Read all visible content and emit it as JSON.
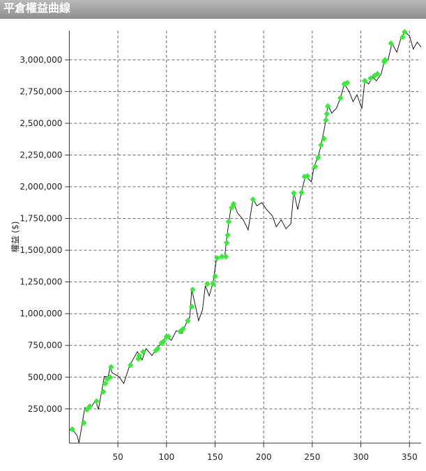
{
  "chart_data": {
    "type": "line",
    "title": "平倉權益曲線",
    "y_label": "權益 ($)",
    "x": [
      0,
      3,
      8,
      10,
      13,
      16,
      19,
      22,
      27,
      30,
      36,
      40,
      42,
      44,
      51,
      56,
      62,
      70,
      75,
      79,
      85,
      90,
      96,
      100,
      105,
      110,
      116,
      120,
      124,
      126,
      130,
      133,
      137,
      140,
      144,
      148,
      151,
      154,
      160,
      162,
      164,
      166,
      169,
      173,
      179,
      184,
      189,
      193,
      198,
      203,
      209,
      213,
      218,
      223,
      228,
      231,
      235,
      239,
      243,
      249,
      252,
      256,
      259,
      263,
      266,
      270,
      275,
      279,
      283,
      288,
      292,
      296,
      301,
      304,
      308,
      312,
      316,
      321,
      324,
      328,
      332,
      337,
      341,
      345,
      350,
      354,
      358,
      362
    ],
    "series": [
      {
        "color": "#1a1a1a",
        "values": [
          80000,
          90000,
          40000,
          -18000,
          120000,
          260000,
          245000,
          260000,
          315000,
          245000,
          505000,
          505000,
          580000,
          535000,
          505000,
          450000,
          590000,
          700000,
          635000,
          725000,
          670000,
          725000,
          780000,
          820000,
          790000,
          865000,
          845000,
          920000,
          975000,
          1190000,
          1055000,
          945000,
          1030000,
          1220000,
          1140000,
          1250000,
          1410000,
          1440000,
          1450000,
          1600000,
          1710000,
          1820000,
          1875000,
          1795000,
          1740000,
          1660000,
          1905000,
          1850000,
          1875000,
          1820000,
          1770000,
          1685000,
          1740000,
          1670000,
          1710000,
          1960000,
          1820000,
          1960000,
          2085000,
          2040000,
          2165000,
          2235000,
          2325000,
          2480000,
          2645000,
          2580000,
          2620000,
          2700000,
          2810000,
          2750000,
          2670000,
          2725000,
          2615000,
          2835000,
          2810000,
          2865000,
          2835000,
          2890000,
          2985000,
          3000000,
          3130000,
          3060000,
          3165000,
          3220000,
          3190000,
          3085000,
          3140000,
          3100000
        ]
      }
    ],
    "markers": {
      "color": "#33ee33",
      "x": [
        3,
        15,
        18,
        21,
        28,
        35,
        37,
        39,
        42,
        43,
        63,
        71,
        72,
        76,
        89,
        91,
        95,
        97,
        100,
        102,
        114,
        117,
        122,
        127,
        126,
        142,
        148,
        150,
        152,
        157,
        161,
        162,
        163,
        164,
        167,
        169,
        189,
        231,
        239,
        242,
        245,
        253,
        256,
        259,
        262,
        264,
        265,
        266,
        279,
        283,
        286,
        304,
        310,
        314,
        317,
        324,
        325,
        331,
        343,
        345
      ],
      "values": [
        90000,
        140000,
        245000,
        270000,
        310000,
        385000,
        450000,
        485000,
        500000,
        580000,
        595000,
        645000,
        670000,
        700000,
        710000,
        725000,
        770000,
        780000,
        820000,
        820000,
        860000,
        880000,
        945000,
        1190000,
        1055000,
        1235000,
        1235000,
        1295000,
        1440000,
        1450000,
        1450000,
        1560000,
        1620000,
        1725000,
        1835000,
        1865000,
        1900000,
        1950000,
        1955000,
        2080000,
        2085000,
        2160000,
        2230000,
        2330000,
        2380000,
        2525000,
        2575000,
        2635000,
        2700000,
        2810000,
        2820000,
        2835000,
        2855000,
        2875000,
        2890000,
        2985000,
        3000000,
        3130000,
        3180000,
        3220000
      ]
    },
    "xlim": [
      0,
      362
    ],
    "ylim": [
      -20000,
      3230000
    ],
    "xticks": [
      50,
      100,
      150,
      200,
      250,
      300,
      350
    ],
    "yticks": [
      {
        "value": 250000,
        "label": "250,000"
      },
      {
        "value": 500000,
        "label": "500,000"
      },
      {
        "value": 750000,
        "label": "750,000"
      },
      {
        "value": 1000000,
        "label": "1,000,000"
      },
      {
        "value": 1250000,
        "label": "1,250,000"
      },
      {
        "value": 1500000,
        "label": "1,500,000"
      },
      {
        "value": 1750000,
        "label": "1,750,000"
      },
      {
        "value": 2000000,
        "label": "2,000,000"
      },
      {
        "value": 2250000,
        "label": "2,250,000"
      },
      {
        "value": 2500000,
        "label": "2,500,000"
      },
      {
        "value": 2750000,
        "label": "2,750,000"
      },
      {
        "value": 3000000,
        "label": "3,000,000"
      }
    ],
    "grid": true
  }
}
